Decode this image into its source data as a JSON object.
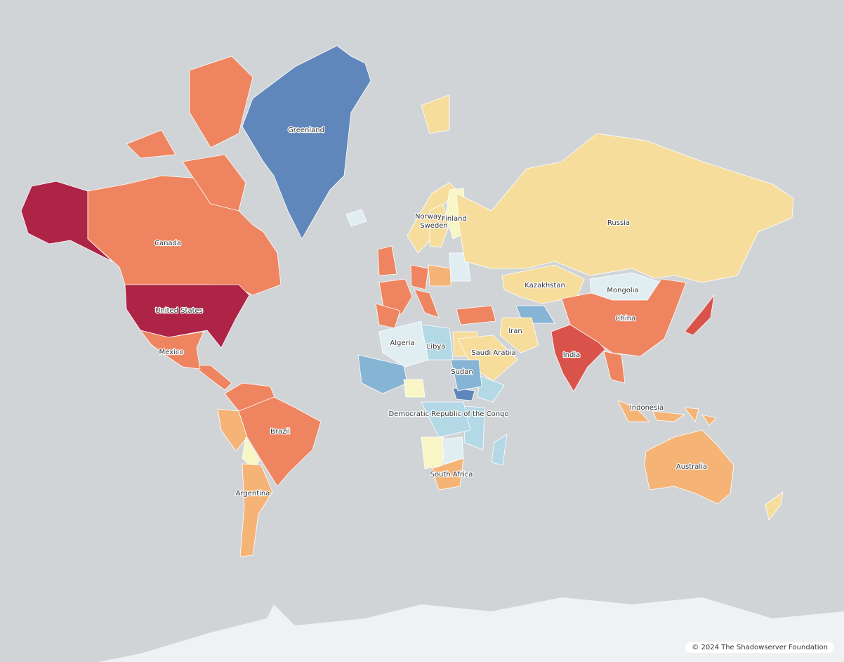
{
  "map": {
    "ocean_color": "#d1d4d7",
    "antarctica_color": "#eef2f4",
    "palette": {
      "dark_red": "#ad2447",
      "red": "#d9534a",
      "orange": "#ee8560",
      "light_orange": "#f5b476",
      "yellow": "#f6dd9c",
      "pale_yellow": "#f8f6c4",
      "pale_blue": "#e0eef2",
      "light_blue": "#b3d8e6",
      "mid_blue": "#86b4d4",
      "blue": "#5f87bb",
      "gray": "#e5e5e5"
    },
    "countries": [
      {
        "name": "Greenland",
        "color": "blue"
      },
      {
        "name": "Canada",
        "color": "orange"
      },
      {
        "name": "United States",
        "color": "dark_red"
      },
      {
        "name": "Mexico",
        "color": "orange"
      },
      {
        "name": "Brazil",
        "color": "orange"
      },
      {
        "name": "Argentina",
        "color": "light_orange"
      },
      {
        "name": "Norway",
        "color": "yellow"
      },
      {
        "name": "Sweden",
        "color": "yellow"
      },
      {
        "name": "Finland",
        "color": "pale_yellow"
      },
      {
        "name": "Russia",
        "color": "yellow"
      },
      {
        "name": "Kazakhstan",
        "color": "yellow"
      },
      {
        "name": "Mongolia",
        "color": "pale_blue"
      },
      {
        "name": "China",
        "color": "orange"
      },
      {
        "name": "India",
        "color": "red"
      },
      {
        "name": "Iran",
        "color": "yellow"
      },
      {
        "name": "Saudi Arabia",
        "color": "yellow"
      },
      {
        "name": "Algeria",
        "color": "pale_blue"
      },
      {
        "name": "Libya",
        "color": "light_blue"
      },
      {
        "name": "Sudan",
        "color": "mid_blue"
      },
      {
        "name": "Democratic Republic of the Congo",
        "color": "light_blue"
      },
      {
        "name": "South Africa",
        "color": "light_orange"
      },
      {
        "name": "Indonesia",
        "color": "light_orange"
      },
      {
        "name": "Australia",
        "color": "light_orange"
      }
    ]
  },
  "attribution": "© 2024 The Shadowserver Foundation"
}
